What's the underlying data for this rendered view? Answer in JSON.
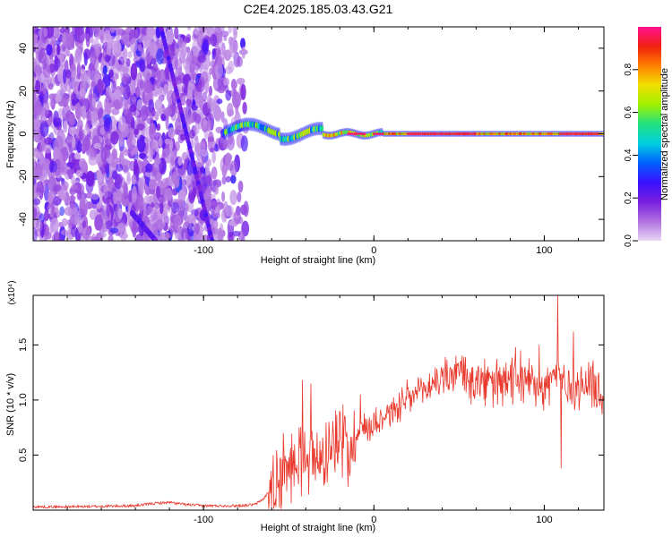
{
  "figure": {
    "title": "C2E4.2025.185.03.43.G21"
  },
  "chart_data": [
    {
      "type": "heatmap",
      "xlabel": "Height of straight line (km)",
      "ylabel": "Frequency (Hz)",
      "xlim": [
        -200,
        135
      ],
      "ylim": [
        -50,
        50
      ],
      "xticks": [
        -100,
        0,
        100
      ],
      "yticks": [
        -40,
        -20,
        0,
        20,
        40
      ],
      "colorbar": {
        "label": "Normalized spectral amplitude",
        "range": [
          0,
          1
        ],
        "ticks": [
          "0.0",
          "0.2",
          "0.4",
          "0.6",
          "0.8"
        ],
        "tick_values": [
          0.0,
          0.2,
          0.4,
          0.6,
          0.8
        ],
        "colormap": [
          "#e8d8f5",
          "#b070e0",
          "#7a20e0",
          "#3a10ff",
          "#0060ff",
          "#00d0e0",
          "#20e080",
          "#a0f000",
          "#f0e000",
          "#ff8000",
          "#f02010",
          "#ff1090"
        ]
      },
      "features": {
        "noise_region_x": [
          -200,
          -75
        ],
        "streak_1": {
          "x": [
            -125,
            -95
          ],
          "y": [
            50,
            -50
          ],
          "note": "steep line"
        },
        "streak_2_lower": {
          "x": [
            -142,
            -128
          ],
          "y": [
            -37,
            -50
          ]
        },
        "carrier_line": {
          "x": [
            -88,
            135
          ],
          "y": 0,
          "peak_amplitude": 1.0
        }
      }
    },
    {
      "type": "line",
      "xlabel": "Height of straight line (km)",
      "ylabel": "SNR (10 * v/v)",
      "y_multiplier": "(x10⁴)",
      "xlim": [
        -200,
        135
      ],
      "ylim": [
        0,
        1.95
      ],
      "xticks": [
        -100,
        0,
        100
      ],
      "yticks": [
        0.5,
        1.0,
        1.5
      ],
      "ytick_labels": [
        "0.5",
        "1.0",
        "1.5"
      ],
      "series": [
        {
          "color": "#e8382c",
          "x": [
            -200,
            -180,
            -160,
            -140,
            -130,
            -120,
            -110,
            -100,
            -90,
            -80,
            -70,
            -65,
            -60,
            -55,
            -50,
            -45,
            -40,
            -35,
            -30,
            -25,
            -20,
            -15,
            -10,
            -5,
            0,
            10,
            20,
            30,
            40,
            50,
            60,
            70,
            80,
            90,
            100,
            108,
            115,
            125,
            135
          ],
          "y": [
            0.03,
            0.03,
            0.035,
            0.04,
            0.06,
            0.07,
            0.05,
            0.04,
            0.04,
            0.04,
            0.05,
            0.1,
            0.2,
            0.3,
            0.4,
            0.45,
            0.55,
            0.45,
            0.5,
            0.55,
            0.62,
            0.6,
            0.7,
            0.75,
            0.8,
            0.9,
            1.0,
            1.1,
            1.2,
            1.25,
            1.15,
            1.15,
            1.15,
            1.2,
            1.12,
            1.25,
            1.1,
            1.15,
            1.05
          ],
          "spikes": [
            [
              -42,
              1.18
            ],
            [
              -37,
              1.15
            ],
            [
              -20,
              0.9
            ],
            [
              -8,
              1.05
            ],
            [
              48,
              1.4
            ],
            [
              58,
              1.3
            ],
            [
              83,
              1.48
            ],
            [
              97,
              1.5
            ],
            [
              108,
              1.95
            ],
            [
              110,
              0.38
            ],
            [
              117,
              1.62
            ]
          ]
        }
      ]
    }
  ]
}
